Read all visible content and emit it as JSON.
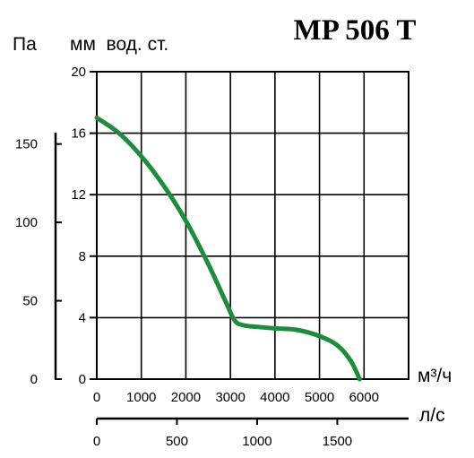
{
  "chart_data": {
    "type": "line",
    "title": "MP 506 T",
    "left_axis_pa_label": "Па",
    "left_axis_mm_label": "мм  вод. ст.",
    "x_unit_top": "м³/ч",
    "x_unit_bottom": "л/с",
    "xlim": [
      0,
      7000
    ],
    "ylim_mm": [
      0,
      20
    ],
    "x_ticks": [
      0,
      1000,
      2000,
      3000,
      4000,
      5000,
      6000
    ],
    "x_tick_labels": [
      "0",
      "1000",
      "2000",
      "3000",
      "4000",
      "5000",
      "6000"
    ],
    "y_ticks_mm": [
      0,
      4,
      8,
      12,
      16,
      20
    ],
    "y_tick_labels_mm": [
      "0",
      "4",
      "8",
      "12",
      "16",
      "20"
    ],
    "pa_ticks": [
      0,
      50,
      100,
      150
    ],
    "pa_tick_labels": [
      "0",
      "50",
      "100",
      "150"
    ],
    "ls_ticks": [
      0,
      500,
      1000,
      1500
    ],
    "ls_tick_labels": [
      "0",
      "500",
      "1000",
      "1500"
    ],
    "grid": true,
    "line_color": "#1e8c3c",
    "series": [
      {
        "x": [
          0,
          500,
          1000,
          1500,
          2000,
          2500,
          2900,
          3100,
          3300,
          3600,
          4000,
          4500,
          5000,
          5400,
          5700,
          5900
        ],
        "values": [
          17.0,
          16.0,
          14.5,
          12.6,
          10.3,
          7.5,
          5.0,
          3.8,
          3.5,
          3.4,
          3.3,
          3.2,
          2.8,
          2.2,
          1.2,
          0.0
        ]
      }
    ]
  }
}
